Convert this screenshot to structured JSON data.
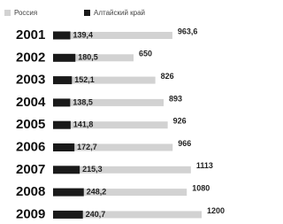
{
  "chart_data": {
    "type": "bar",
    "categories": [
      "2001",
      "2002",
      "2003",
      "2004",
      "2005",
      "2006",
      "2007",
      "2008",
      "2009"
    ],
    "series": [
      {
        "name": "Россия",
        "color": "#d2d2d2",
        "values": [
          963.6,
          650,
          826,
          893,
          926,
          966,
          1113,
          1080,
          1200
        ],
        "value_labels": [
          "963,6",
          "650",
          "826",
          "893",
          "926",
          "966",
          "1113",
          "1080",
          "1200"
        ]
      },
      {
        "name": "Алтайский край",
        "color": "#1a1a1a",
        "values": [
          139.4,
          180.5,
          152.1,
          138.5,
          141.8,
          172.7,
          215.3,
          248.2,
          240.7
        ],
        "value_labels": [
          "139,4",
          "180,5",
          "152,1",
          "138,5",
          "141,8",
          "172,7",
          "215,3",
          "248,2",
          "240,7"
        ]
      }
    ]
  }
}
